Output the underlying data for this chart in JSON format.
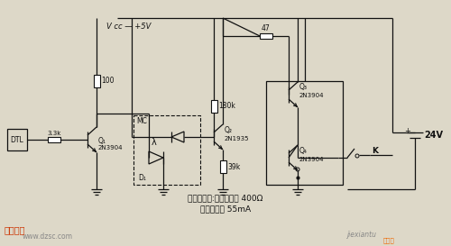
{
  "bg_color": "#ddd8c8",
  "line_color": "#111111",
  "figsize": [
    5.0,
    2.73
  ],
  "dpi": 100,
  "vcc_label": "V cc — +5V",
  "v24_label": "24V",
  "dtl_label": "DTL",
  "r1_label": "100",
  "r2_label": "180k",
  "r3_label": "39k",
  "r4_label": "47",
  "r5_label": "3.3k",
  "mc_label": "MC",
  "d1_label": "D₁",
  "k_label": "K",
  "q1_name": "2N3904",
  "q2_name": "2N1935",
  "q3_name": "2N3904",
  "q4_name": "2N3904",
  "relay_line1": "继电器持性:线圈阻抗为 400Ω",
  "relay_line2": "动作电流为 55mA",
  "watermark_web": "www.dzsc.com",
  "watermark_jiexiantu": "jiexiantu",
  "watermark_jxtu": "接线图",
  "logo_text": "维库一下",
  "wk_color": "#cc3300",
  "gray_color": "#888888",
  "orange_color": "#ee6600"
}
